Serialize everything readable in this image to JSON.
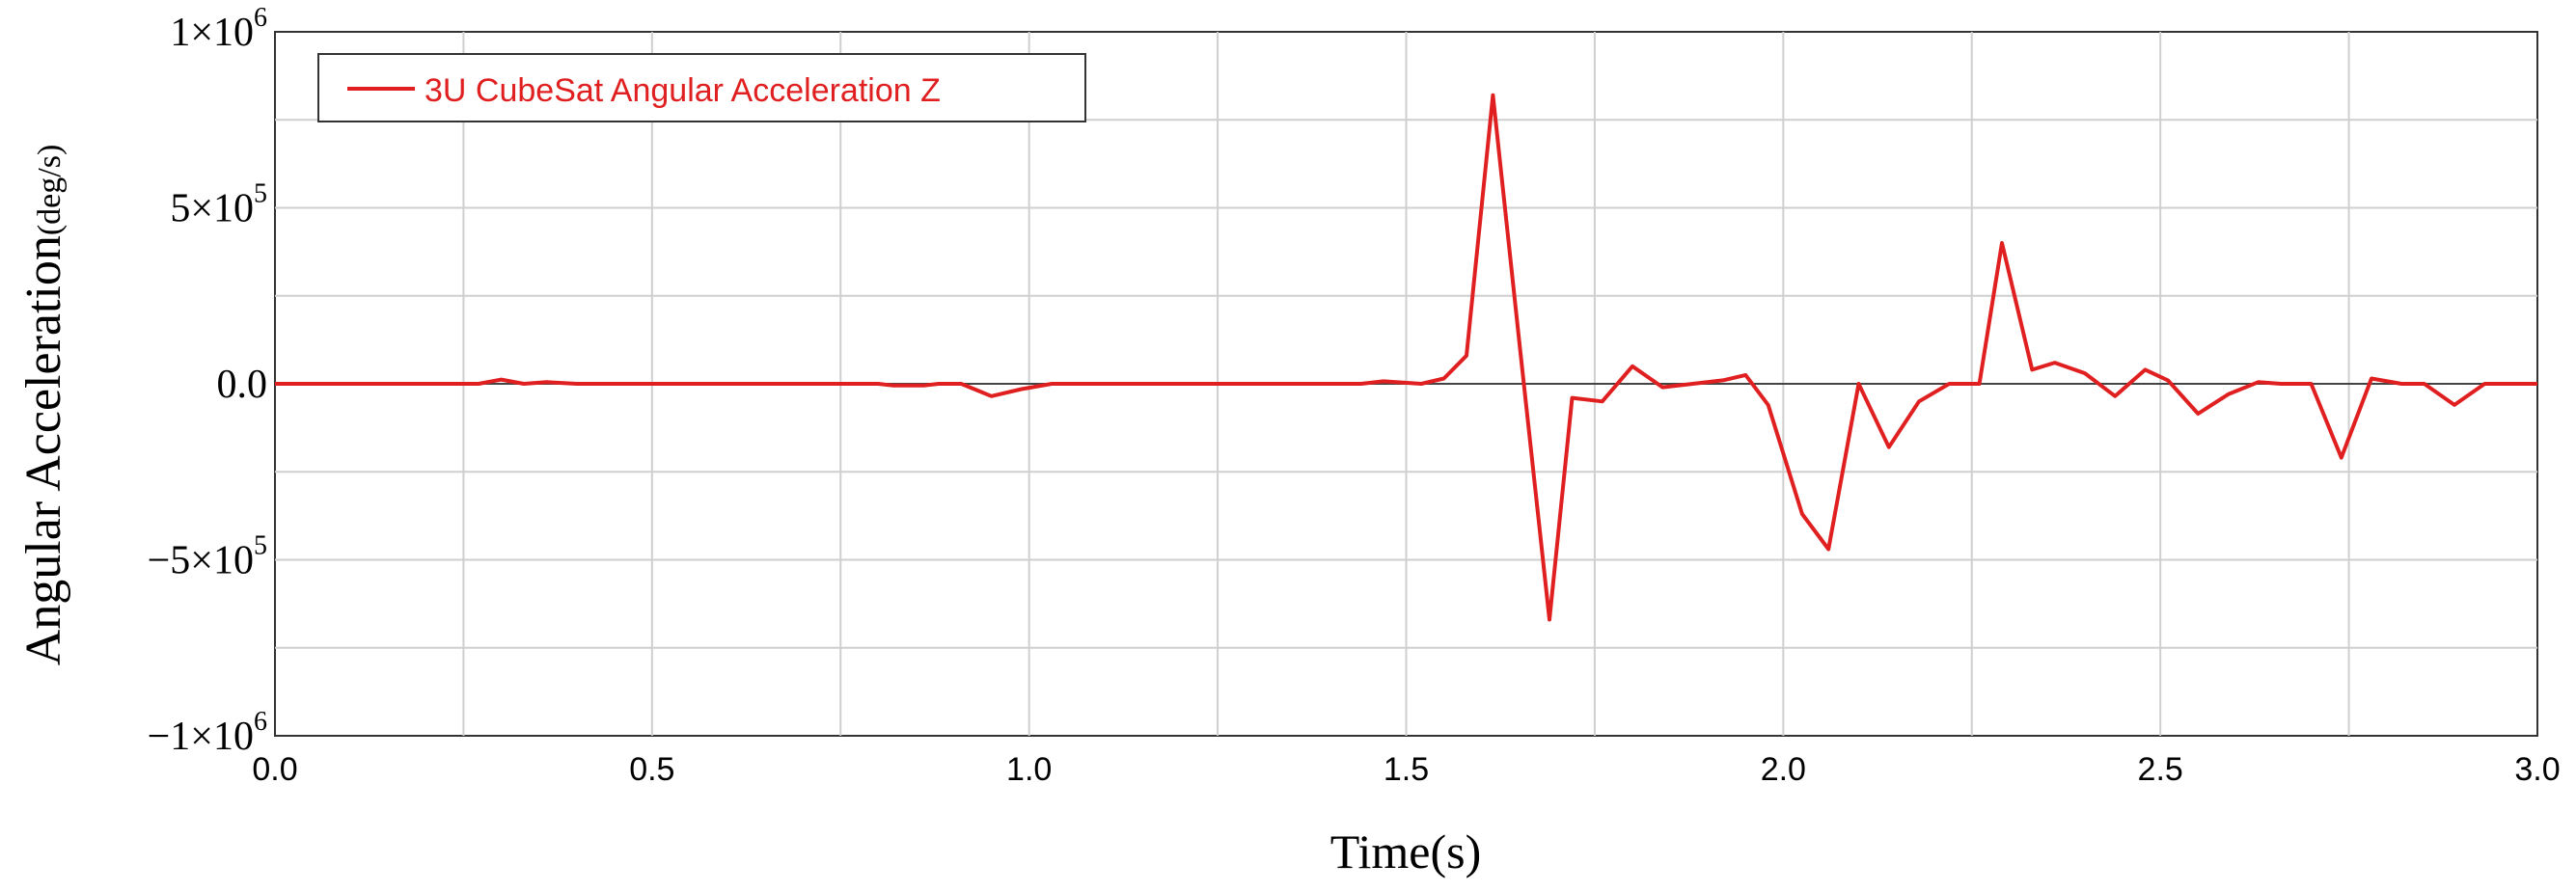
{
  "chart_data": {
    "type": "line",
    "xlabel": "Time(s)",
    "ylabel_main": "Angular Acceleration",
    "ylabel_unit": "(deg/s)",
    "xlim": [
      0.0,
      3.0
    ],
    "ylim": [
      -1000000,
      1000000
    ],
    "x_ticks": [
      0.0,
      0.5,
      1.0,
      1.5,
      2.0,
      2.5,
      3.0
    ],
    "x_tick_labels": [
      "0.0",
      "0.5",
      "1.0",
      "1.5",
      "2.0",
      "2.5",
      "3.0"
    ],
    "y_ticks": [
      {
        "value": 1000000,
        "mantissa": "1×10",
        "exponent": "6"
      },
      {
        "value": 500000,
        "mantissa": "5×10",
        "exponent": "5"
      },
      {
        "value": 0,
        "mantissa": "0.0",
        "exponent": ""
      },
      {
        "value": -500000,
        "mantissa": "−5×10",
        "exponent": "5"
      },
      {
        "value": -1000000,
        "mantissa": "−1×10",
        "exponent": "6"
      }
    ],
    "grid": true,
    "legend_position": "top-left",
    "series": [
      {
        "name": "3U CubeSat Angular Acceleration Z",
        "color": "#e02020",
        "points": [
          [
            0.0,
            0
          ],
          [
            0.27,
            0
          ],
          [
            0.3,
            12000
          ],
          [
            0.33,
            0
          ],
          [
            0.36,
            5000
          ],
          [
            0.4,
            0
          ],
          [
            0.8,
            0
          ],
          [
            0.82,
            -5000
          ],
          [
            0.86,
            -5000
          ],
          [
            0.88,
            0
          ],
          [
            0.91,
            0
          ],
          [
            0.95,
            -35000
          ],
          [
            0.99,
            -15000
          ],
          [
            1.03,
            0
          ],
          [
            1.44,
            0
          ],
          [
            1.47,
            7000
          ],
          [
            1.52,
            0
          ],
          [
            1.55,
            15000
          ],
          [
            1.58,
            80000
          ],
          [
            1.615,
            820000
          ],
          [
            1.65,
            120000
          ],
          [
            1.69,
            -670000
          ],
          [
            1.72,
            -40000
          ],
          [
            1.76,
            -50000
          ],
          [
            1.8,
            50000
          ],
          [
            1.84,
            -10000
          ],
          [
            1.88,
            0
          ],
          [
            1.92,
            10000
          ],
          [
            1.95,
            25000
          ],
          [
            1.98,
            -60000
          ],
          [
            2.025,
            -370000
          ],
          [
            2.06,
            -470000
          ],
          [
            2.1,
            0
          ],
          [
            2.14,
            -180000
          ],
          [
            2.18,
            -50000
          ],
          [
            2.22,
            0
          ],
          [
            2.26,
            0
          ],
          [
            2.29,
            400000
          ],
          [
            2.33,
            40000
          ],
          [
            2.36,
            60000
          ],
          [
            2.4,
            30000
          ],
          [
            2.44,
            -35000
          ],
          [
            2.48,
            40000
          ],
          [
            2.51,
            10000
          ],
          [
            2.55,
            -85000
          ],
          [
            2.59,
            -30000
          ],
          [
            2.63,
            5000
          ],
          [
            2.66,
            0
          ],
          [
            2.7,
            0
          ],
          [
            2.74,
            -210000
          ],
          [
            2.78,
            15000
          ],
          [
            2.82,
            0
          ],
          [
            2.85,
            0
          ],
          [
            2.89,
            -60000
          ],
          [
            2.93,
            0
          ],
          [
            3.0,
            0
          ]
        ]
      }
    ]
  }
}
